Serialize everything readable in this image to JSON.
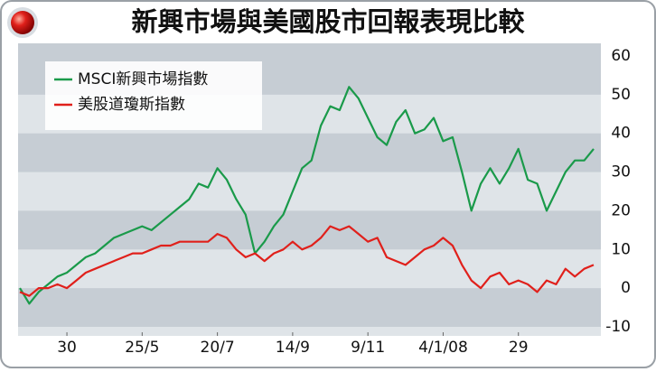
{
  "chart_data": {
    "type": "line",
    "title": "新興市場與美國股市回報表現比較",
    "x": [
      0,
      1,
      2,
      3,
      4,
      5,
      6,
      7,
      8,
      9,
      10,
      11,
      12,
      13,
      14,
      15,
      16,
      17,
      18,
      19,
      20,
      21,
      22,
      23,
      24,
      25,
      26,
      27,
      28,
      29,
      30,
      31,
      32,
      33,
      34,
      35,
      36,
      37,
      38,
      39,
      40,
      41,
      42,
      43,
      44,
      45,
      46,
      47,
      48,
      49,
      50,
      51,
      52,
      53,
      54,
      55,
      56,
      57,
      58,
      59,
      60,
      61
    ],
    "xlim": [
      0,
      61
    ],
    "xticks": [
      {
        "value": 5,
        "label": "30"
      },
      {
        "value": 13,
        "label": "25/5"
      },
      {
        "value": 21,
        "label": "20/7"
      },
      {
        "value": 29,
        "label": "14/9"
      },
      {
        "value": 37,
        "label": "9/11"
      },
      {
        "value": 45,
        "label": "4/1/08"
      },
      {
        "value": 53,
        "label": "29"
      }
    ],
    "ylim": [
      -10,
      60
    ],
    "yticks": [
      -10,
      0,
      10,
      20,
      30,
      40,
      50,
      60
    ],
    "legend": "upper left",
    "series": [
      {
        "name": "MSCI新興市場指數",
        "color": "#1a9a4a",
        "values": [
          0,
          -4,
          -1,
          1,
          3,
          4,
          6,
          8,
          9,
          11,
          13,
          14,
          15,
          16,
          15,
          17,
          19,
          21,
          23,
          27,
          26,
          31,
          28,
          23,
          19,
          9,
          12,
          16,
          19,
          25,
          31,
          33,
          42,
          47,
          46,
          52,
          49,
          44,
          39,
          37,
          43,
          46,
          40,
          41,
          44,
          38,
          39,
          30,
          20,
          27,
          31,
          27,
          31,
          36,
          28,
          27,
          20,
          25,
          30,
          33,
          33,
          36
        ]
      },
      {
        "name": "美股道瓊斯指數",
        "color": "#e0201b",
        "values": [
          -1,
          -2,
          0,
          0,
          1,
          0,
          2,
          4,
          5,
          6,
          7,
          8,
          9,
          9,
          10,
          11,
          11,
          12,
          12,
          12,
          12,
          14,
          13,
          10,
          8,
          9,
          7,
          9,
          10,
          12,
          10,
          11,
          13,
          16,
          15,
          16,
          14,
          12,
          13,
          8,
          7,
          6,
          8,
          10,
          11,
          13,
          11,
          6,
          2,
          0,
          3,
          4,
          1,
          2,
          1,
          -1,
          2,
          1,
          5,
          3,
          5,
          6
        ]
      }
    ]
  }
}
